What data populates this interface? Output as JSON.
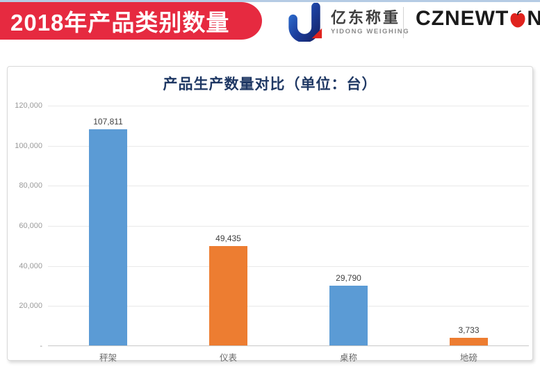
{
  "page": {
    "banner": "2018年产品类别数量"
  },
  "logos": {
    "yidong": {
      "cn": "亿东称重",
      "en": "YIDONG WEIGHING"
    },
    "cznewton": {
      "left": "CZNEWT",
      "right": "N",
      "reg": "®"
    }
  },
  "colors": {
    "banner_red": "#E62A40",
    "title_navy": "#1F3864",
    "bar_blue": "#5B9BD5",
    "bar_orange": "#ED7D31",
    "apple_red": "#E0231E",
    "top_strip_blue": "#B5CBE4"
  },
  "chart_data": {
    "type": "bar",
    "title": "产品生产数量对比（单位：台）",
    "categories": [
      "秤架",
      "仪表",
      "桌称",
      "地磅"
    ],
    "values": [
      107811,
      49435,
      29790,
      3733
    ],
    "value_labels": [
      "107,811",
      "49,435",
      "29,790",
      "3,733"
    ],
    "bar_colors": [
      "#5B9BD5",
      "#ED7D31",
      "#5B9BD5",
      "#ED7D31"
    ],
    "xlabel": "",
    "ylabel": "",
    "ylim": [
      0,
      120000
    ],
    "ytick_interval": 20000,
    "ytick_labels_bottom_up": [
      "-",
      "20,000",
      "40,000",
      "60,000",
      "80,000",
      "100,000",
      "120,000"
    ],
    "grid": true,
    "legend": "none"
  }
}
